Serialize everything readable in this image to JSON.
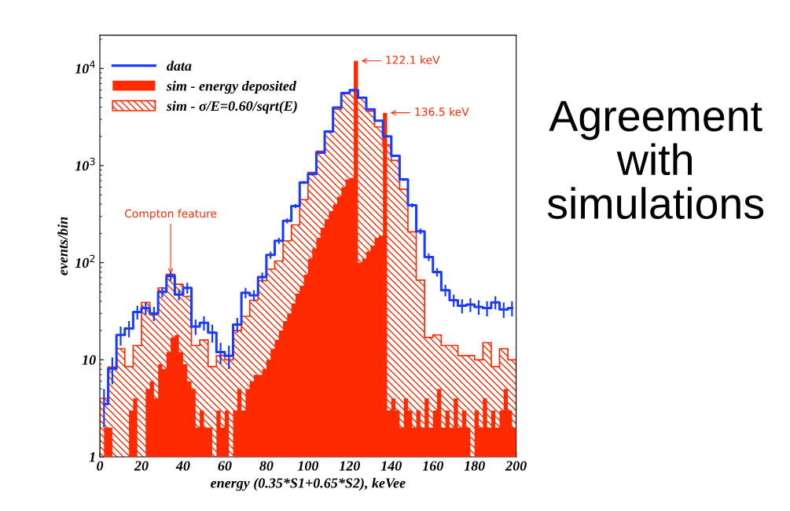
{
  "chart_data": {
    "type": "histogram",
    "title": "Agreement with simulations",
    "xlabel": "energy (0.35*S1+0.65*S2), keVee",
    "ylabel": "events/bin",
    "xlim": [
      0,
      200
    ],
    "xticks": [
      0,
      20,
      40,
      60,
      80,
      100,
      120,
      140,
      160,
      180,
      200
    ],
    "ylim": [
      1,
      22000
    ],
    "yticks": [
      1,
      10,
      {
        "value": 100,
        "label": "10$^{2}$"
      },
      {
        "value": 1000,
        "label": "10$^{3}$"
      },
      {
        "value": 10000,
        "label": "10$^{4}$"
      }
    ],
    "log": true,
    "grid": false,
    "legend": "top left",
    "annotations": [
      {
        "text": "Compton feature",
        "x": 34,
        "y": 73
      },
      {
        "text": "122.1 keV",
        "x": 123,
        "y": 12000
      },
      {
        "text": "136.5 keV",
        "x": 137,
        "y": 3500
      }
    ],
    "bins": [
      0,
      2,
      4,
      6,
      8,
      10,
      12,
      14,
      16,
      18,
      20,
      22,
      24,
      26,
      28,
      30,
      32,
      34,
      36,
      38,
      40,
      42,
      44,
      46,
      48,
      50,
      52,
      54,
      56,
      58,
      60,
      62,
      64,
      66,
      68,
      70,
      72,
      74,
      76,
      78,
      80,
      82,
      84,
      86,
      88,
      90,
      92,
      94,
      96,
      98,
      100,
      102,
      104,
      106,
      108,
      110,
      112,
      114,
      116,
      118,
      120,
      122,
      124,
      126,
      128,
      130,
      132,
      134,
      136,
      138,
      140,
      142,
      144,
      146,
      148,
      150,
      152,
      154,
      156,
      158,
      160,
      162,
      164,
      166,
      168,
      170,
      172,
      174,
      176,
      178,
      180,
      182,
      184,
      186,
      188,
      190,
      192,
      194,
      196,
      198,
      200
    ],
    "series": [
      {
        "name": "data",
        "type": "step",
        "color": "#1a3cff",
        "x": [
          2,
          6,
          10,
          14,
          18,
          22,
          26,
          30,
          34,
          38,
          42,
          46,
          50,
          54,
          58,
          62,
          66,
          70,
          74,
          78,
          82,
          86,
          90,
          94,
          98,
          102,
          106,
          110,
          114,
          118,
          122,
          126,
          130,
          134,
          138,
          142,
          146,
          150,
          154,
          158,
          162,
          166,
          170,
          174,
          178,
          182,
          186,
          190,
          194,
          198
        ],
        "values": [
          3.5,
          8.1,
          18,
          21,
          31,
          34,
          30,
          50,
          73,
          47,
          55,
          22,
          24,
          19,
          12,
          11,
          23,
          49,
          46,
          71,
          120,
          168,
          270,
          383,
          670,
          820,
          1360,
          2240,
          3960,
          5600,
          6000,
          5000,
          3800,
          2900,
          2000,
          1260,
          720,
          390,
          210,
          114,
          80,
          52,
          41,
          36,
          37,
          35,
          34,
          39,
          33,
          34
        ],
        "errors": [
          1.5,
          2.5,
          4,
          4,
          5,
          5,
          5,
          6,
          8,
          6,
          7,
          4,
          4,
          4,
          3,
          3,
          4,
          6,
          6,
          8,
          10,
          12,
          16,
          19,
          25,
          28,
          36,
          47,
          62,
          null,
          null,
          null,
          61,
          53,
          44,
          35,
          26,
          19,
          14,
          10,
          8,
          7,
          6,
          6,
          6,
          6,
          6,
          6,
          6,
          6
        ]
      },
      {
        "name": "sim - energy deposited",
        "color": "#ff2a00",
        "values": [
          1,
          2,
          2,
          1,
          1,
          1,
          1,
          3,
          4,
          1,
          1,
          5,
          6,
          4,
          9,
          8,
          12,
          17,
          18,
          12,
          9,
          6,
          5,
          2,
          3,
          2,
          2,
          1,
          3,
          2,
          3,
          1,
          3,
          5,
          3,
          5,
          6,
          7,
          7,
          8,
          10,
          13,
          16,
          20,
          25,
          30,
          38,
          48,
          58,
          75,
          110,
          140,
          180,
          230,
          280,
          340,
          400,
          480,
          600,
          720,
          750,
          12000,
          100,
          110,
          130,
          150,
          180,
          190,
          3500,
          3,
          4,
          3,
          2,
          4,
          3,
          2,
          3,
          2,
          4,
          2,
          3,
          5,
          2,
          3,
          2,
          4,
          2,
          3,
          2,
          1,
          3,
          2,
          4,
          2,
          3,
          2,
          3,
          5,
          3,
          2
        ]
      },
      {
        "name": "sim - σ/E=0.60/sqrt(E)",
        "color": "#ff2a00",
        "values": [
          4,
          4,
          8.4,
          8.4,
          13,
          13,
          8.5,
          8.5,
          14,
          14,
          39,
          39,
          29,
          29,
          55,
          55,
          76,
          76,
          60,
          60,
          45,
          45,
          14,
          14,
          16,
          16,
          8.5,
          8.5,
          11,
          11,
          10,
          10,
          20,
          20,
          28,
          28,
          41,
          41,
          65,
          65,
          86,
          86,
          104,
          104,
          168,
          168,
          245,
          245,
          445,
          445,
          850,
          850,
          1410,
          1410,
          2240,
          2240,
          3800,
          3800,
          5500,
          5500,
          5900,
          5900,
          5000,
          5000,
          3640,
          3640,
          2500,
          2500,
          1630,
          1630,
          1130,
          1130,
          570,
          570,
          208,
          208,
          66,
          66,
          17,
          17,
          18,
          18,
          14,
          14,
          14,
          14,
          11,
          11,
          11,
          11,
          10,
          10,
          15,
          15,
          8.5,
          8.5,
          13,
          13,
          10,
          10
        ]
      }
    ]
  }
}
